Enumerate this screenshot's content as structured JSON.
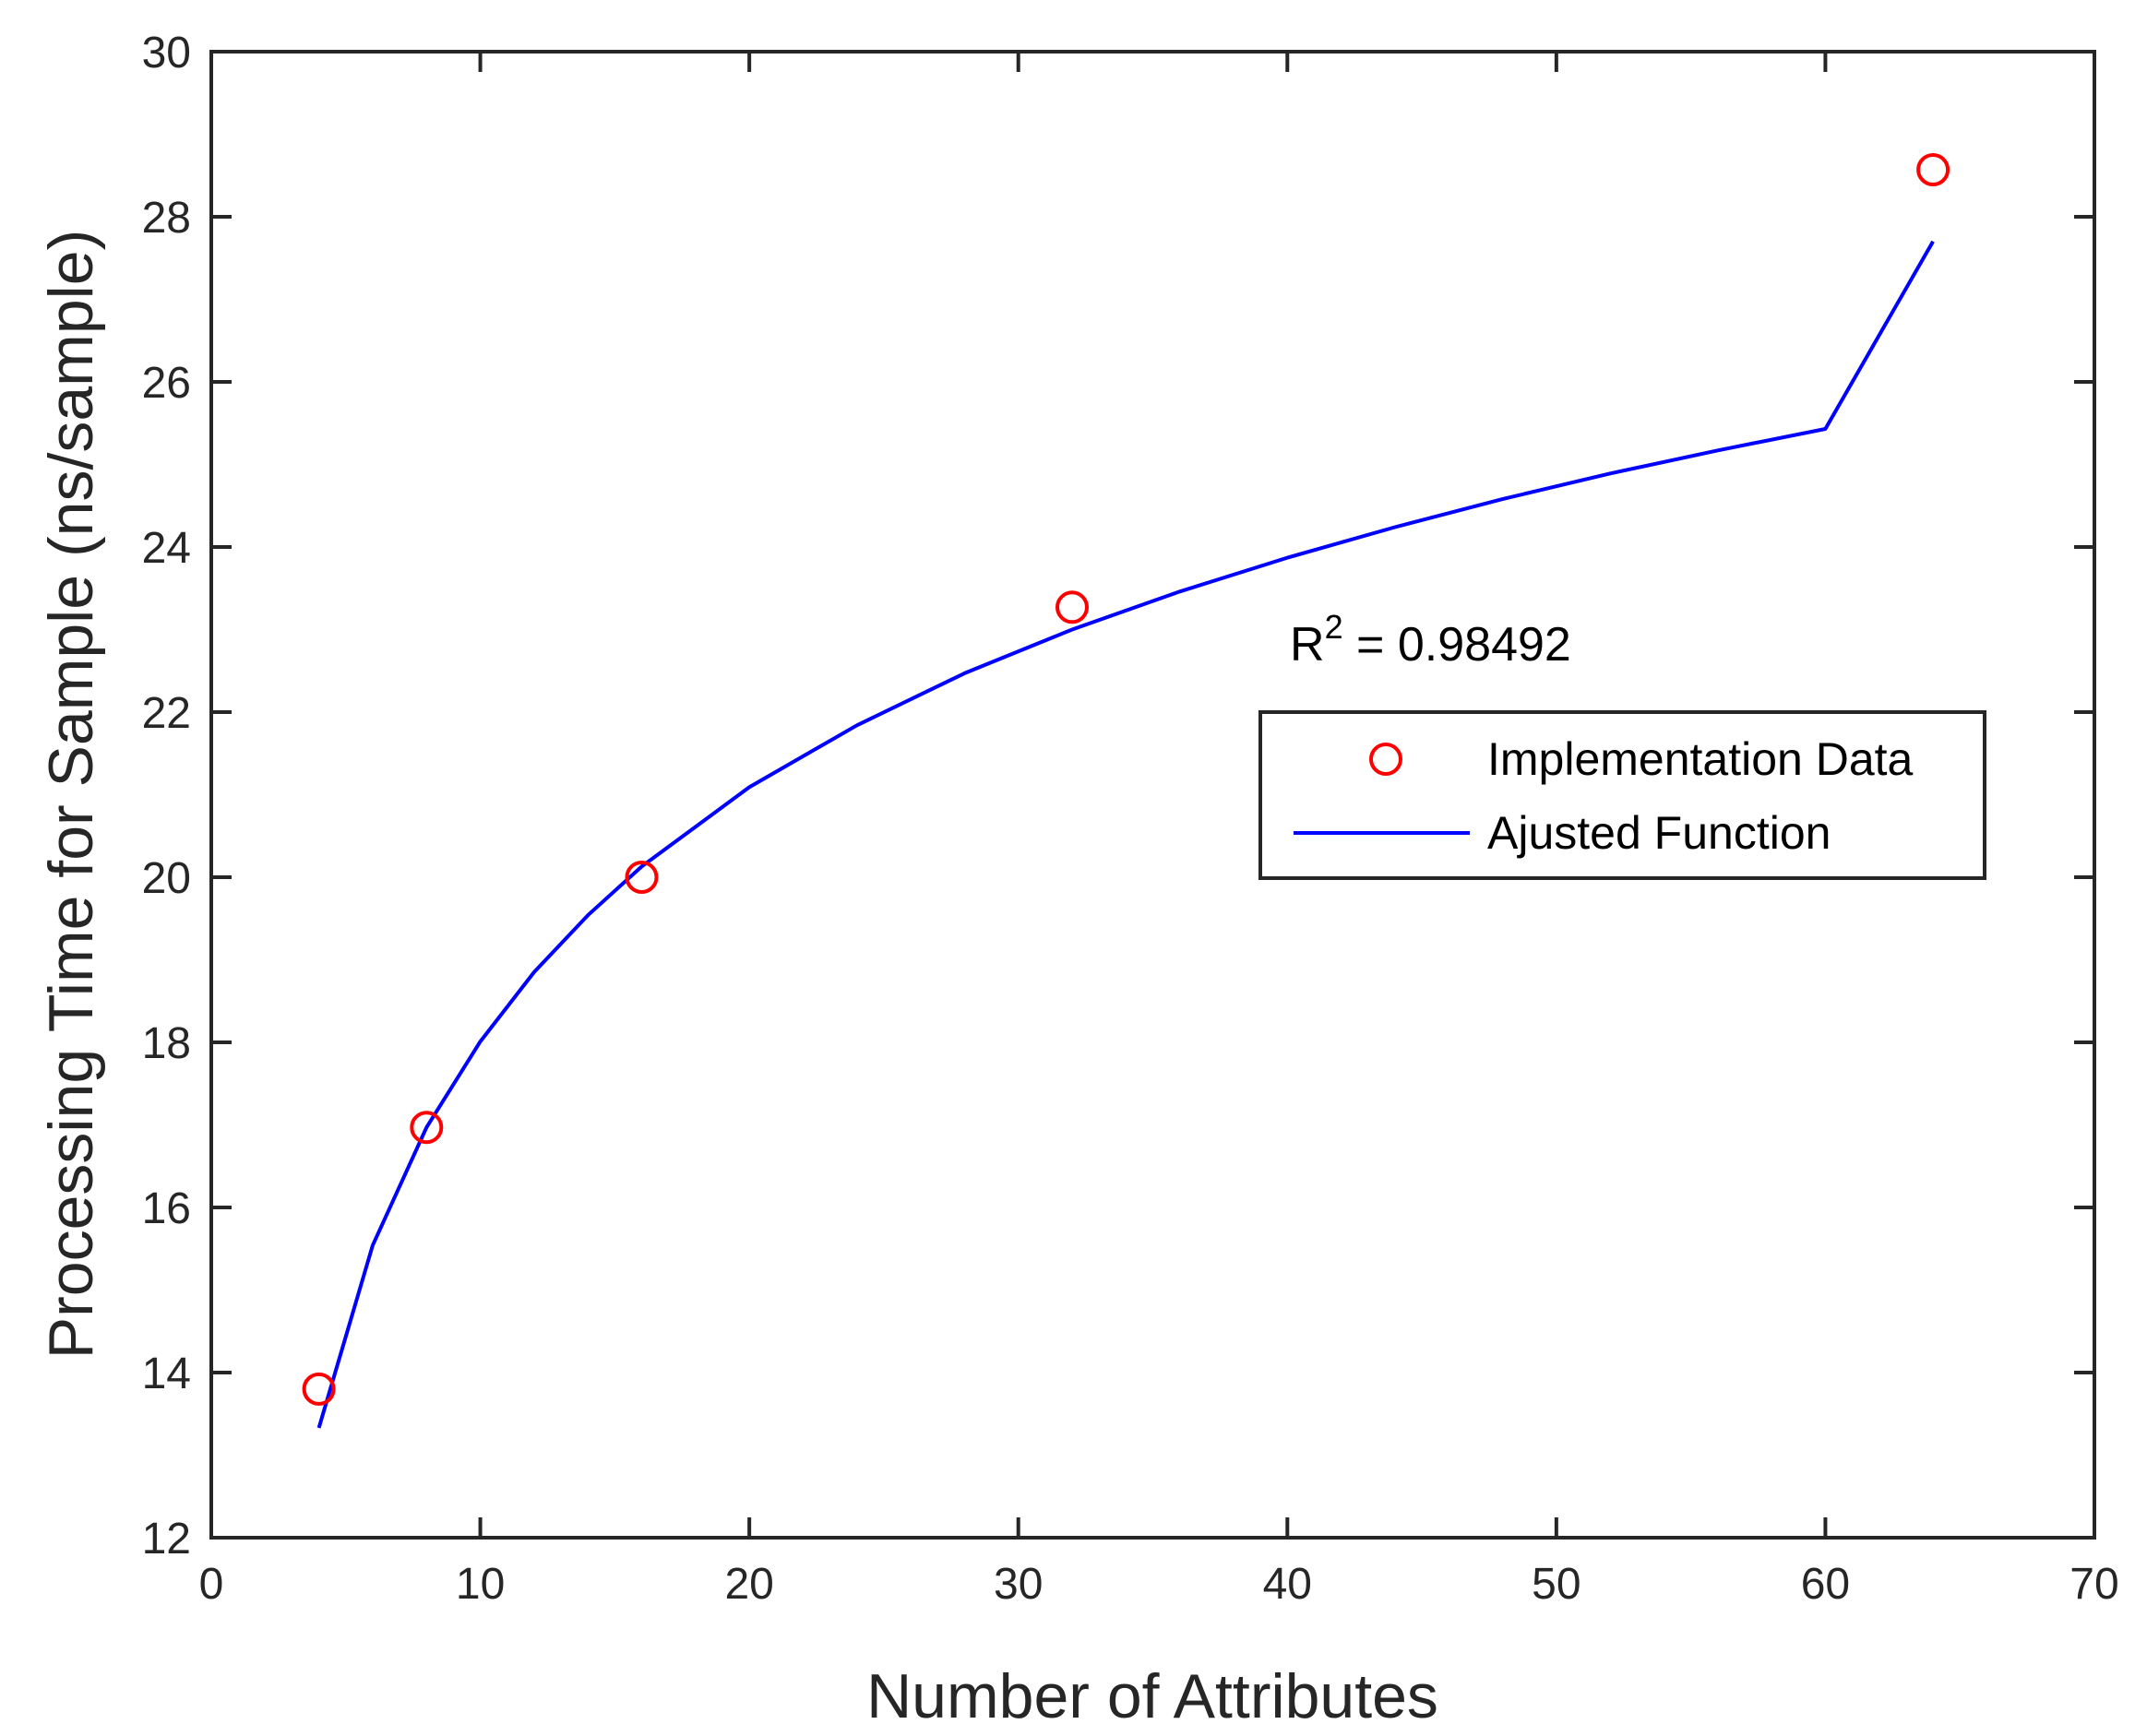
{
  "chart_data": {
    "type": "scatter",
    "title": "",
    "xlabel": "Number of Attributes",
    "ylabel": "Processing Time for Sample (ns/sample)",
    "xlim": [
      0,
      70
    ],
    "ylim": [
      12,
      30
    ],
    "xticks": [
      "0",
      "10",
      "20",
      "30",
      "40",
      "50",
      "60",
      "70"
    ],
    "yticks": [
      "12",
      "14",
      "16",
      "18",
      "20",
      "22",
      "24",
      "26",
      "28",
      "30"
    ],
    "grid": false,
    "legend_position": "right",
    "series": [
      {
        "name": "Implementation Data",
        "kind": "scatter",
        "marker": "circle",
        "color": "#ff0000",
        "x": [
          4,
          8,
          16,
          32,
          64
        ],
        "y": [
          13.8,
          16.97,
          20.0,
          23.27,
          28.57
        ]
      },
      {
        "name": "Ajusted Function",
        "kind": "line",
        "color": "#0000ff",
        "x": [
          4,
          6,
          8,
          10,
          12,
          14,
          16,
          20,
          24,
          28,
          32,
          36,
          40,
          44,
          48,
          52,
          56,
          60,
          64
        ],
        "y": [
          13.33,
          15.54,
          16.97,
          18.01,
          18.85,
          19.54,
          20.13,
          21.09,
          21.84,
          22.47,
          23.0,
          23.46,
          23.87,
          24.24,
          24.58,
          24.89,
          25.17,
          25.43,
          27.7
        ]
      }
    ],
    "annotation": {
      "prefix": "R",
      "superscript": "2",
      "suffix": " = 0.98492"
    }
  }
}
